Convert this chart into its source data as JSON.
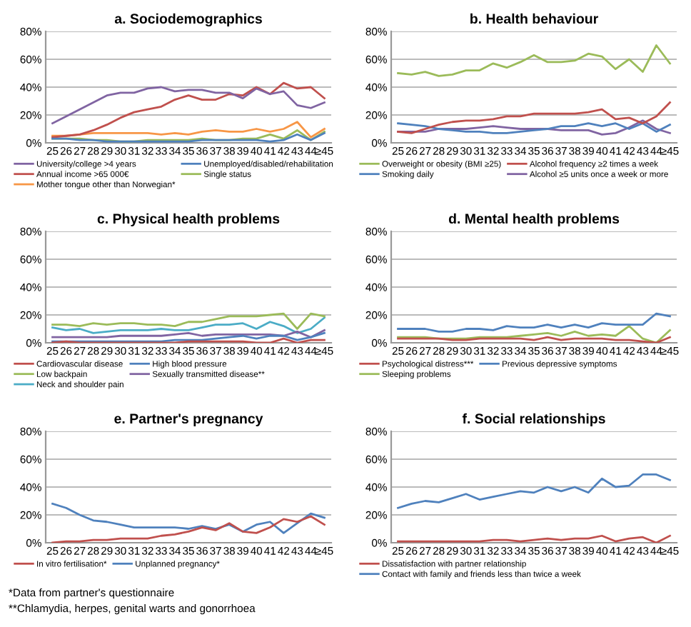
{
  "chart_data": [
    {
      "type": "line",
      "title": "a. Sociodemographics",
      "categories": [
        "25",
        "26",
        "27",
        "28",
        "29",
        "30",
        "31",
        "32",
        "33",
        "34",
        "35",
        "36",
        "37",
        "38",
        "39",
        "40",
        "41",
        "42",
        "43",
        "44",
        "≥45"
      ],
      "ylim": [
        0,
        80
      ],
      "yticks": [
        {
          "value": 0,
          "label": "0%"
        },
        {
          "value": 20,
          "label": "20%"
        },
        {
          "value": 40,
          "label": "40%"
        },
        {
          "value": 60,
          "label": "60%"
        },
        {
          "value": 80,
          "label": "80%"
        }
      ],
      "grid": "y",
      "legend": "bottom",
      "series": [
        {
          "name": "University/college >4 years",
          "color": "#8064a2",
          "values": [
            14,
            19,
            24,
            29,
            34,
            36,
            36,
            39,
            40,
            37,
            38,
            38,
            36,
            36,
            32,
            39,
            35,
            37,
            27,
            25,
            29
          ]
        },
        {
          "name": "Unemployed/disabled/rehabilitation",
          "color": "#4f81bd",
          "values": [
            3,
            3,
            2,
            2,
            1,
            1,
            1,
            1,
            1,
            1,
            1,
            2,
            2,
            2,
            2,
            2,
            1,
            2,
            6,
            2,
            7
          ]
        },
        {
          "name": "Annual income >65 000€",
          "color": "#c0504d",
          "values": [
            4,
            5,
            6,
            9,
            13,
            18,
            22,
            24,
            26,
            31,
            34,
            31,
            31,
            35,
            34,
            40,
            35,
            43,
            39,
            40,
            32
          ]
        },
        {
          "name": "Single status",
          "color": "#9bbb59",
          "values": [
            3,
            3,
            3,
            2,
            2,
            1,
            1,
            2,
            2,
            2,
            2,
            3,
            2,
            2,
            3,
            3,
            6,
            3,
            9,
            2,
            8
          ]
        },
        {
          "name": "Mother tongue other than Norwegian*",
          "color": "#f79646",
          "values": [
            5,
            5,
            6,
            7,
            7,
            7,
            7,
            7,
            6,
            7,
            6,
            8,
            9,
            8,
            8,
            10,
            8,
            10,
            15,
            4,
            10
          ]
        }
      ]
    },
    {
      "type": "line",
      "title": "b. Health behaviour",
      "categories": [
        "25",
        "26",
        "27",
        "28",
        "29",
        "30",
        "31",
        "32",
        "33",
        "34",
        "35",
        "36",
        "37",
        "38",
        "39",
        "40",
        "41",
        "42",
        "43",
        "44",
        "≥45"
      ],
      "ylim": [
        0,
        80
      ],
      "yticks": [
        {
          "value": 0,
          "label": "0%"
        },
        {
          "value": 20,
          "label": "20%"
        },
        {
          "value": 40,
          "label": "40%"
        },
        {
          "value": 60,
          "label": "60%"
        },
        {
          "value": 80,
          "label": "80%"
        }
      ],
      "grid": "y",
      "legend": "bottom",
      "series": [
        {
          "name": "Overweight or obesity (BMI ≥25)",
          "color": "#9bbb59",
          "values": [
            50,
            49,
            51,
            48,
            49,
            52,
            52,
            57,
            54,
            58,
            63,
            58,
            58,
            59,
            64,
            62,
            53,
            60,
            51,
            70,
            57
          ]
        },
        {
          "name": "Alcohol frequency ≥2 times a week",
          "color": "#c0504d",
          "values": [
            8,
            7,
            10,
            13,
            15,
            16,
            16,
            17,
            19,
            19,
            21,
            21,
            21,
            21,
            22,
            24,
            17,
            18,
            14,
            19,
            29
          ]
        },
        {
          "name": "Smoking daily",
          "color": "#4f81bd",
          "values": [
            14,
            13,
            12,
            10,
            9,
            8,
            8,
            7,
            7,
            8,
            9,
            10,
            12,
            12,
            14,
            12,
            14,
            10,
            14,
            8,
            13
          ]
        },
        {
          "name": "Alcohol ≥5 units once a week or more",
          "color": "#8064a2",
          "values": [
            8,
            8,
            8,
            10,
            10,
            10,
            11,
            12,
            11,
            10,
            10,
            10,
            9,
            9,
            9,
            6,
            7,
            11,
            16,
            10,
            7
          ]
        }
      ]
    },
    {
      "type": "line",
      "title": "c. Physical health problems",
      "categories": [
        "25",
        "26",
        "27",
        "28",
        "29",
        "30",
        "31",
        "32",
        "33",
        "34",
        "35",
        "36",
        "37",
        "38",
        "39",
        "40",
        "41",
        "42",
        "43",
        "44",
        "≥45"
      ],
      "ylim": [
        0,
        80
      ],
      "yticks": [
        {
          "value": 0,
          "label": "0%"
        },
        {
          "value": 20,
          "label": "20%"
        },
        {
          "value": 40,
          "label": "40%"
        },
        {
          "value": 60,
          "label": "60%"
        },
        {
          "value": 80,
          "label": "80%"
        }
      ],
      "grid": "y",
      "legend": "bottom",
      "series": [
        {
          "name": "Cardiovascular disease",
          "color": "#c0504d",
          "values": [
            0,
            1,
            0,
            0,
            0,
            0,
            0,
            0,
            0,
            0,
            1,
            1,
            1,
            1,
            1,
            0,
            0,
            3,
            0,
            2,
            2
          ]
        },
        {
          "name": "High blood pressure",
          "color": "#4f81bd",
          "values": [
            1,
            1,
            1,
            1,
            1,
            1,
            1,
            1,
            1,
            2,
            2,
            2,
            3,
            4,
            5,
            3,
            5,
            5,
            2,
            4,
            7
          ]
        },
        {
          "name": "Low backpain",
          "color": "#9bbb59",
          "values": [
            13,
            13,
            12,
            14,
            13,
            14,
            14,
            13,
            13,
            12,
            15,
            15,
            17,
            19,
            19,
            19,
            20,
            21,
            10,
            21,
            19
          ]
        },
        {
          "name": "Sexually transmitted disease**",
          "color": "#8064a2",
          "values": [
            4,
            4,
            4,
            4,
            4,
            5,
            5,
            5,
            5,
            6,
            7,
            5,
            6,
            6,
            6,
            6,
            6,
            5,
            8,
            4,
            9
          ]
        },
        {
          "name": "Neck and shoulder pain",
          "color": "#4bacc6",
          "values": [
            11,
            9,
            10,
            7,
            8,
            9,
            9,
            9,
            10,
            9,
            9,
            11,
            13,
            13,
            14,
            10,
            15,
            12,
            7,
            10,
            18
          ]
        }
      ]
    },
    {
      "type": "line",
      "title": "d. Mental health problems",
      "categories": [
        "25",
        "26",
        "27",
        "28",
        "29",
        "30",
        "31",
        "32",
        "33",
        "34",
        "35",
        "36",
        "37",
        "38",
        "39",
        "40",
        "41",
        "42",
        "43",
        "44",
        "≥45"
      ],
      "ylim": [
        0,
        80
      ],
      "yticks": [
        {
          "value": 0,
          "label": "0%"
        },
        {
          "value": 20,
          "label": "20%"
        },
        {
          "value": 40,
          "label": "40%"
        },
        {
          "value": 60,
          "label": "60%"
        },
        {
          "value": 80,
          "label": "80%"
        }
      ],
      "grid": "y",
      "legend": "bottom",
      "series": [
        {
          "name": "Psychological distress***",
          "color": "#c0504d",
          "values": [
            3,
            3,
            3,
            3,
            2,
            2,
            3,
            3,
            3,
            3,
            2,
            4,
            2,
            3,
            3,
            3,
            2,
            2,
            1,
            0,
            4
          ]
        },
        {
          "name": "Previous depressive symptoms",
          "color": "#4f81bd",
          "values": [
            10,
            10,
            10,
            8,
            8,
            10,
            10,
            9,
            12,
            11,
            11,
            13,
            11,
            13,
            11,
            14,
            13,
            13,
            13,
            21,
            19
          ]
        },
        {
          "name": "Sleeping problems",
          "color": "#9bbb59",
          "values": [
            4,
            4,
            4,
            3,
            3,
            3,
            4,
            4,
            4,
            5,
            6,
            7,
            5,
            8,
            5,
            6,
            5,
            12,
            3,
            0,
            9
          ]
        }
      ]
    },
    {
      "type": "line",
      "title": "e. Partner's pregnancy",
      "categories": [
        "25",
        "26",
        "27",
        "28",
        "29",
        "30",
        "31",
        "32",
        "33",
        "34",
        "35",
        "36",
        "37",
        "38",
        "39",
        "40",
        "41",
        "42",
        "43",
        "44",
        "≥45"
      ],
      "ylim": [
        0,
        80
      ],
      "yticks": [
        {
          "value": 0,
          "label": "0%"
        },
        {
          "value": 20,
          "label": "20%"
        },
        {
          "value": 40,
          "label": "40%"
        },
        {
          "value": 60,
          "label": "60%"
        },
        {
          "value": 80,
          "label": "80%"
        }
      ],
      "grid": "y",
      "legend": "bottom",
      "annotations": [
        "*Data from partner's questionnaire",
        "**Chlamydia, herpes, genital warts and gonorrhoea"
      ],
      "series": [
        {
          "name": "In vitro fertilisation*",
          "color": "#c0504d",
          "values": [
            0,
            1,
            1,
            2,
            2,
            3,
            3,
            3,
            5,
            6,
            8,
            11,
            9,
            14,
            8,
            7,
            11,
            17,
            15,
            19,
            13
          ]
        },
        {
          "name": "Unplanned pregnancy*",
          "color": "#4f81bd",
          "values": [
            28,
            25,
            20,
            16,
            15,
            13,
            11,
            11,
            11,
            11,
            10,
            12,
            10,
            13,
            8,
            13,
            15,
            7,
            14,
            21,
            18
          ]
        }
      ]
    },
    {
      "type": "line",
      "title": "f. Social relationships",
      "categories": [
        "25",
        "26",
        "27",
        "28",
        "29",
        "30",
        "31",
        "32",
        "33",
        "34",
        "35",
        "36",
        "37",
        "38",
        "39",
        "40",
        "41",
        "42",
        "43",
        "44",
        "≥45"
      ],
      "ylim": [
        0,
        80
      ],
      "yticks": [
        {
          "value": 0,
          "label": "0%"
        },
        {
          "value": 20,
          "label": "20%"
        },
        {
          "value": 40,
          "label": "40%"
        },
        {
          "value": 60,
          "label": "60%"
        },
        {
          "value": 80,
          "label": "80%"
        }
      ],
      "grid": "y",
      "legend": "bottom",
      "series": [
        {
          "name": "Dissatisfaction with partner relationship",
          "color": "#c0504d",
          "values": [
            1,
            1,
            1,
            1,
            1,
            1,
            1,
            2,
            2,
            1,
            2,
            3,
            2,
            3,
            3,
            5,
            1,
            3,
            4,
            0,
            5
          ]
        },
        {
          "name": "Contact with family and friends less than twice a week",
          "color": "#4f81bd",
          "values": [
            25,
            28,
            30,
            29,
            32,
            35,
            31,
            33,
            35,
            37,
            36,
            40,
            37,
            40,
            36,
            46,
            40,
            41,
            49,
            49,
            45
          ]
        }
      ]
    }
  ]
}
